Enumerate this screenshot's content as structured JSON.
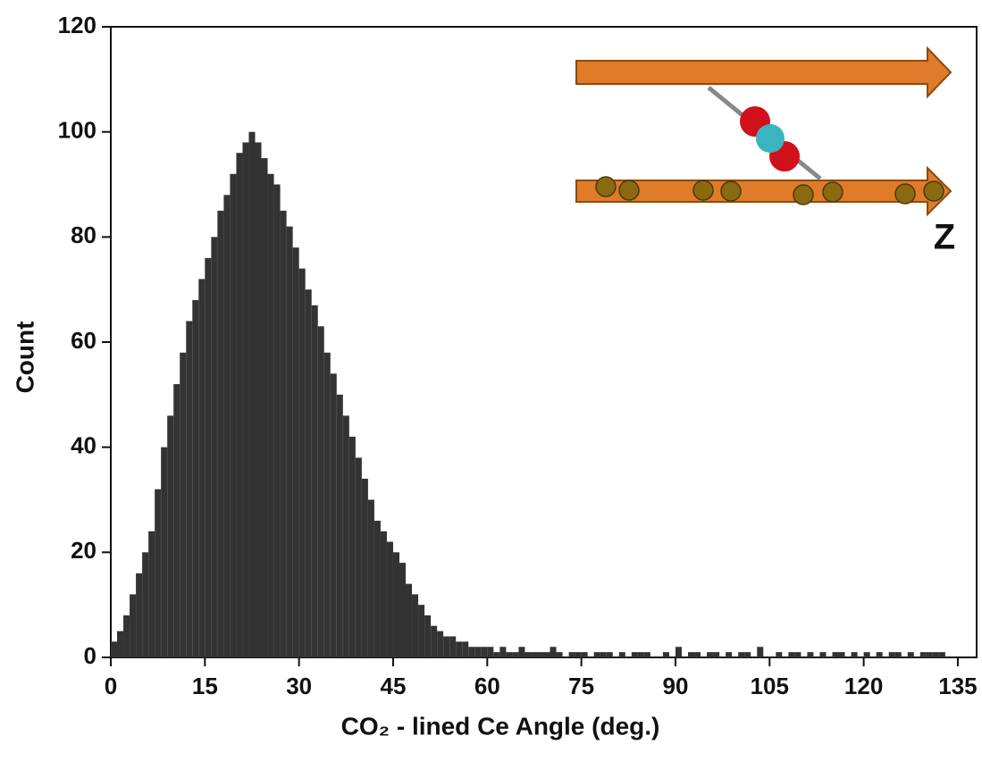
{
  "chart_data": {
    "type": "histogram",
    "x_label": "CO₂ - lined Ce Angle (deg.)",
    "y_label": "Count",
    "annotation": "Z",
    "color": "#333333",
    "bins": [
      0,
      1,
      2,
      3,
      4,
      5,
      6,
      7,
      8,
      9,
      10,
      11,
      12,
      13,
      14,
      15,
      16,
      17,
      18,
      19,
      20,
      21,
      22,
      23,
      24,
      25,
      26,
      27,
      28,
      29,
      30,
      31,
      32,
      33,
      34,
      35,
      36,
      37,
      38,
      39,
      40,
      41,
      42,
      43,
      44,
      45,
      46,
      47,
      48,
      49,
      50,
      51,
      52,
      53,
      54,
      55,
      56,
      57,
      58,
      59,
      60,
      61,
      62,
      63,
      64,
      65,
      66,
      67,
      68,
      69,
      70,
      71,
      72,
      73,
      74,
      75,
      76,
      77,
      78,
      79,
      80,
      81,
      82,
      83,
      84,
      85,
      86,
      87,
      88,
      89,
      90,
      91,
      92,
      93,
      94,
      95,
      96,
      97,
      98,
      99,
      100,
      101,
      102,
      103,
      104,
      105,
      106,
      107,
      108,
      109,
      110,
      111,
      112,
      113,
      114,
      115,
      116,
      117,
      118,
      119,
      120,
      121,
      122,
      123,
      124,
      125,
      126,
      127,
      128,
      129,
      130,
      131,
      132,
      133
    ],
    "values": [
      3,
      5,
      8,
      12,
      16,
      20,
      24,
      32,
      40,
      46,
      52,
      58,
      64,
      68,
      72,
      76,
      80,
      85,
      88,
      92,
      96,
      98,
      100,
      98,
      95,
      92,
      90,
      85,
      82,
      78,
      74,
      70,
      67,
      63,
      58,
      54,
      50,
      46,
      42,
      38,
      34,
      30,
      26,
      24,
      22,
      20,
      18,
      14,
      12,
      10,
      8,
      6,
      5,
      4,
      4,
      3,
      3,
      2,
      2,
      2,
      2,
      1,
      2,
      1,
      1,
      2,
      1,
      1,
      1,
      1,
      2,
      1,
      0,
      1,
      1,
      1,
      0,
      1,
      1,
      1,
      0,
      1,
      0,
      1,
      1,
      1,
      0,
      0,
      1,
      0,
      2,
      0,
      1,
      1,
      0,
      1,
      1,
      0,
      1,
      0,
      1,
      1,
      0,
      2,
      0,
      0,
      1,
      0,
      1,
      1,
      0,
      1,
      0,
      1,
      0,
      1,
      1,
      0,
      1,
      0,
      1,
      0,
      1,
      0,
      1,
      1,
      0,
      1,
      0,
      1,
      1,
      1,
      1
    ],
    "xlim": [
      0,
      138
    ],
    "ylim": [
      0,
      120
    ],
    "xticks": [
      0,
      15,
      30,
      45,
      60,
      75,
      90,
      105,
      120,
      135
    ],
    "yticks": [
      0,
      20,
      40,
      60,
      80,
      100,
      120
    ]
  }
}
